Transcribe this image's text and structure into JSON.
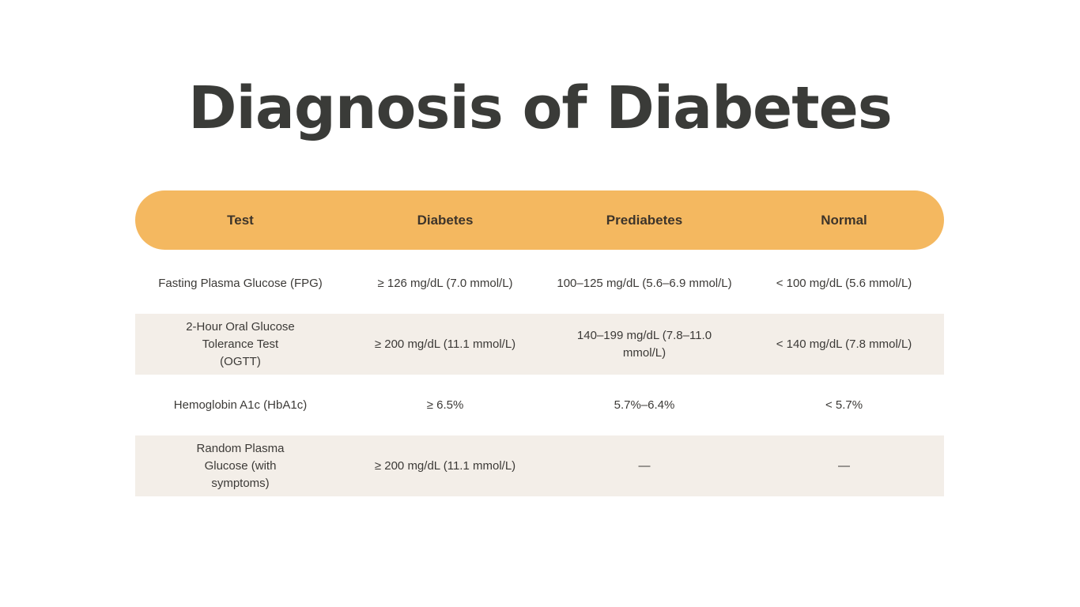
{
  "page": {
    "title": "Diagnosis of Diabetes"
  },
  "table": {
    "columns": [
      "Test",
      "Diabetes",
      "Prediabetes",
      "Normal"
    ],
    "rows": [
      {
        "test": "Fasting Plasma Glucose (FPG)",
        "diabetes": "≥ 126 mg/dL (7.0 mmol/L)",
        "prediabetes": "100–125 mg/dL (5.6–6.9 mmol/L)",
        "normal": "< 100 mg/dL (5.6 mmol/L)"
      },
      {
        "test": "2-Hour Oral Glucose Tolerance Test (OGTT)",
        "diabetes": "≥ 200 mg/dL (11.1 mmol/L)",
        "prediabetes": "140–199 mg/dL (7.8–11.0 mmol/L)",
        "normal": "< 140 mg/dL (7.8 mmol/L)"
      },
      {
        "test": "Hemoglobin A1c (HbA1c)",
        "diabetes": "≥ 6.5%",
        "prediabetes": "5.7%–6.4%",
        "normal": "< 5.7%"
      },
      {
        "test": "Random Plasma Glucose (with symptoms)",
        "diabetes": "≥ 200 mg/dL (11.1 mmol/L)",
        "prediabetes": "—",
        "normal": "—"
      }
    ]
  },
  "colors": {
    "header_bg": "#f4b860",
    "alt_row_bg": "#f3eee8",
    "title_text": "#3a3b38"
  }
}
